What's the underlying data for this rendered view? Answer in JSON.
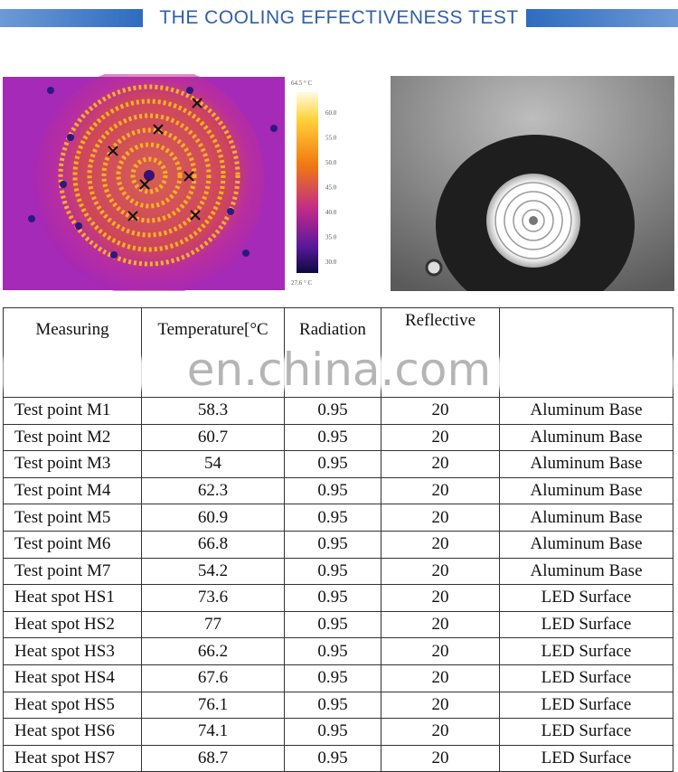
{
  "header": {
    "title": "THE COOLING EFFECTIVENESS TEST"
  },
  "thermal_scale": {
    "max": "64.5 ° C",
    "ticks": [
      "60.0",
      "55.0",
      "50.0",
      "45.0",
      "40.0",
      "35.0",
      "30.0"
    ],
    "min": "27.6 ° C"
  },
  "watermark": "en.china.com",
  "table": {
    "header": [
      "Measuring",
      "Temperature[°C",
      "Radiation",
      "Reflective"
    ],
    "rows": [
      [
        "Test point M1",
        58.3,
        0.95,
        20,
        "Aluminum Base"
      ],
      [
        "Test point M2",
        60.7,
        0.95,
        20,
        "Aluminum Base"
      ],
      [
        "Test point M3",
        54,
        0.95,
        20,
        "Aluminum Base"
      ],
      [
        "Test point M4",
        62.3,
        0.95,
        20,
        "Aluminum Base"
      ],
      [
        "Test point M5",
        60.9,
        0.95,
        20,
        "Aluminum Base"
      ],
      [
        "Test point M6",
        66.8,
        0.95,
        20,
        "Aluminum Base"
      ],
      [
        "Test point M7",
        54.2,
        0.95,
        20,
        "Aluminum Base"
      ],
      [
        "Heat spot HS1",
        73.6,
        0.95,
        20,
        "LED Surface"
      ],
      [
        "Heat spot HS2",
        77,
        0.95,
        20,
        "LED Surface"
      ],
      [
        "Heat spot HS3",
        66.2,
        0.95,
        20,
        "LED Surface"
      ],
      [
        "Heat spot HS4",
        67.6,
        0.95,
        20,
        "LED Surface"
      ],
      [
        "Heat spot HS5",
        76.1,
        0.95,
        20,
        "LED Surface"
      ],
      [
        "Heat spot HS6",
        74.1,
        0.95,
        20,
        "LED Surface"
      ],
      [
        "Heat spot HS7",
        68.7,
        0.95,
        20,
        "LED Surface"
      ]
    ]
  }
}
